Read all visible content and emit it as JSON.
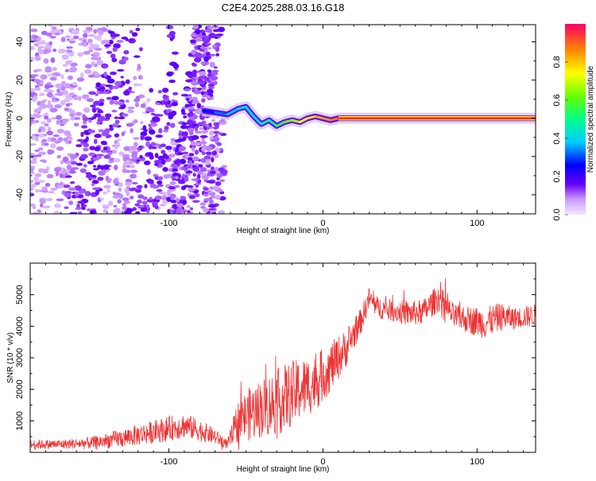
{
  "title": "C2E4.2025.288.03.16.G18",
  "colors": {
    "snr_line": "#ee3333",
    "frame": "#000000",
    "cmap_low": "#f3e8ff",
    "cmap_mid": "#6a00ff"
  },
  "chart_data": [
    {
      "type": "heatmap",
      "id": "spectrogram",
      "xlabel": "Height of straight line (km)",
      "ylabel": "Frequency (Hz)",
      "xlim": [
        -190,
        138
      ],
      "ylim": [
        -50,
        49
      ],
      "xticks": [
        -100,
        0,
        100
      ],
      "xtick_labels": [
        "-100",
        "0",
        "100"
      ],
      "yticks": [
        -40,
        -20,
        0,
        20,
        40
      ],
      "ytick_labels": [
        "-40",
        "-20",
        "0",
        "20",
        "40"
      ],
      "description_of_content": "scattered purple noise blobs left of -65 km; dominant tone near 0 Hz from -78 km onward, wavering until about 10 km then a steady red line",
      "tone_track": {
        "x": [
          -78,
          -70,
          -62,
          -55,
          -50,
          -45,
          -40,
          -35,
          -30,
          -25,
          -20,
          -15,
          -10,
          -5,
          0,
          5,
          10,
          20,
          40,
          60,
          80,
          100,
          120,
          138
        ],
        "freq": [
          4,
          3,
          2,
          5,
          6,
          1,
          -3,
          -1,
          -4,
          -2,
          -1,
          -2,
          0,
          1,
          0,
          -1,
          0,
          0,
          0,
          0,
          0,
          0,
          0,
          0
        ],
        "amplitude": [
          0.2,
          0.3,
          0.35,
          0.4,
          0.45,
          0.4,
          0.45,
          0.5,
          0.5,
          0.6,
          0.65,
          0.7,
          0.75,
          0.8,
          0.85,
          0.85,
          0.9,
          0.95,
          0.95,
          0.95,
          0.95,
          0.95,
          0.95,
          0.95
        ]
      },
      "colorbar": {
        "label": "Normalized spectral amplitude",
        "range": [
          0.0,
          1.0
        ],
        "ticks": [
          0.0,
          0.2,
          0.4,
          0.6,
          0.8
        ],
        "tick_labels": [
          "0.0",
          "0.2",
          "0.4",
          "0.6",
          "0.8"
        ]
      }
    },
    {
      "type": "line",
      "id": "snr",
      "xlabel": "Height of straight line (km)",
      "ylabel": "SNR (10 * v/v)",
      "xlim": [
        -190,
        138
      ],
      "ylim": [
        0,
        6000
      ],
      "xticks": [
        -100,
        0,
        100
      ],
      "xtick_labels": [
        "-100",
        "0",
        "100"
      ],
      "yticks": [
        1000,
        2000,
        3000,
        4000,
        5000
      ],
      "ytick_labels": [
        "1000",
        "2000",
        "3000",
        "4000",
        "5000"
      ],
      "series": [
        {
          "name": "SNR",
          "x": [
            -190,
            -170,
            -150,
            -130,
            -115,
            -100,
            -90,
            -80,
            -70,
            -62,
            -55,
            -45,
            -35,
            -25,
            -15,
            -5,
            5,
            15,
            25,
            30,
            35,
            45,
            55,
            65,
            75,
            85,
            95,
            105,
            115,
            125,
            138
          ],
          "y": [
            250,
            260,
            300,
            450,
            600,
            750,
            850,
            700,
            500,
            250,
            1000,
            1300,
            1500,
            1700,
            2000,
            2200,
            2700,
            3300,
            4200,
            4900,
            4600,
            4500,
            4400,
            4450,
            4900,
            4300,
            4200,
            4100,
            4300,
            4250,
            4350
          ],
          "noise_envelope": [
            150,
            150,
            200,
            300,
            350,
            400,
            400,
            350,
            250,
            150,
            700,
            900,
            1000,
            1100,
            1000,
            900,
            800,
            600,
            400,
            350,
            350,
            350,
            400,
            400,
            450,
            400,
            450,
            500,
            450,
            350,
            350
          ]
        }
      ]
    }
  ]
}
